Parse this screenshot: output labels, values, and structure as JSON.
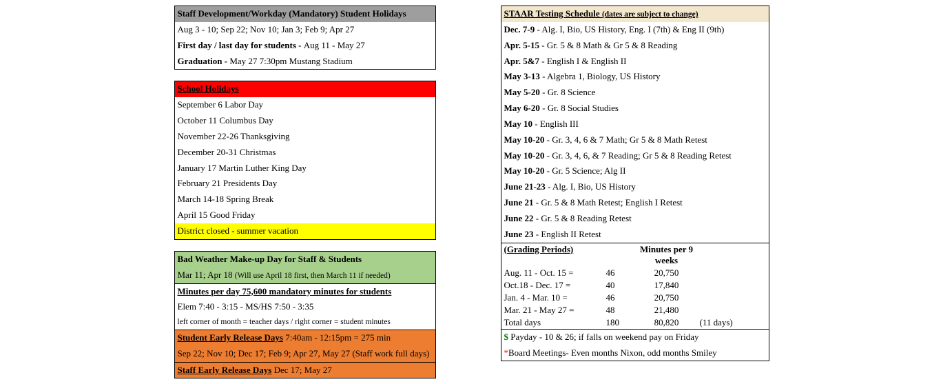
{
  "staffDev": {
    "header": "Staff Development/Workday (Mandatory) Student Holidays",
    "dates": "Aug 3 - 10; Sep 22; Nov 10; Jan 3; Feb 9; Apr 27",
    "firstLastLabel": "First day / last day for students - ",
    "firstLastValue": "Aug 11 - May 27",
    "gradLabel": "Graduation -  ",
    "gradValue": "May 27  7:30pm Mustang Stadium"
  },
  "holidays": {
    "header": "School Holidays",
    "items": [
      "September 6   Labor Day",
      "October 11   Columbus Day",
      "November 22-26 Thanksgiving",
      "December 20-31  Christmas",
      "January 17  Martin Luther King Day",
      "February 21  Presidents Day",
      "March 14-18  Spring Break",
      "April 15  Good Friday"
    ],
    "footer": "District closed - summer vacation"
  },
  "badWeather": {
    "line1Label": "Bad Weather Make-up Day for Staff & Students",
    "line2a": "Mar 11; Apr 18 ",
    "line2b": "(Will use April 18 first, then March 11 if needed)",
    "minsHeader": "Minutes per day  75,600 mandatory minutes for students",
    "minsSched": "Elem  7:40 - 3:15   -   MS/HS  7:50 - 3:35",
    "cornerNote": "left corner of month = teacher days / right corner = student minutes",
    "studEarlyLabel": "Student Early Release Days",
    "studEarlyTimes": " 7:40am - 12:15pm = 275 min",
    "studEarlyDates": "Sep 22; Nov 10; Dec 17; Feb 9; Apr 27, May 27 (Staff work full days)",
    "staffEarlyLabel": "Staff Early Release Days",
    "staffEarlyDates": " Dec 17; May 27"
  },
  "staar": {
    "header": "STAAR Testing Schedule ",
    "headerNote": "(dates are subject to change)",
    "rows": [
      {
        "b": "Dec. 7-9",
        "t": " - Alg. I, Bio, US History, Eng. I (7th) & Eng II (9th)"
      },
      {
        "b": "Apr. 5-15",
        "t": " - Gr. 5 & 8 Math & Gr 5 & 8 Reading"
      },
      {
        "b": "Apr. 5&7",
        "t": " - English I & English II"
      },
      {
        "b": "May 3-13",
        "t": "  - Algebra 1, Biology, US History"
      },
      {
        "b": "May  5-20",
        "t": " - Gr. 8 Science"
      },
      {
        "b": "May  6-20",
        "t": " - Gr. 8 Social Studies"
      },
      {
        "b": "May 10",
        "t": "  - English III"
      },
      {
        "b": "May 10-20",
        "t": " - Gr. 3, 4, 6 & 7 Math; Gr 5 & 8 Math Retest"
      },
      {
        "b": "May  10-20",
        "t": " - Gr. 3, 4, 6, & 7 Reading; Gr 5 & 8 Reading Retest"
      },
      {
        "b": "May 10-20",
        "t": " - Gr. 5 Science; Alg II"
      },
      {
        "b": "June 21-23",
        "t": " - Alg. I, Bio, US History"
      },
      {
        "b": "June 21",
        "t": " - Gr. 5 & 8 Math Retest; English I Retest"
      },
      {
        "b": "June 22",
        "t": " - Gr. 5 & 8 Reading Retest"
      },
      {
        "b": "June 23",
        "t": " - English II Retest"
      }
    ]
  },
  "grading": {
    "col1": "(Grading Periods)",
    "col2": "Minutes per 9 weeks",
    "rows": [
      {
        "p": "Aug. 11 - Oct. 15  = ",
        "d": "46",
        "m": "20,750",
        "n": ""
      },
      {
        "p": "Oct.18 - Dec. 17 = ",
        "d": "40",
        "m": "17,840",
        "n": ""
      },
      {
        "p": "Jan. 4 - Mar. 10  = ",
        "d": "46",
        "m": "20,750",
        "n": ""
      },
      {
        "p": "Mar. 21 - May 27 = ",
        "d": "48",
        "m": "21,480",
        "n": ""
      },
      {
        "p": "Total days",
        "d": "180",
        "m": "80,820",
        "n": "(11 days)"
      }
    ]
  },
  "footer": {
    "payday": " Payday - 10 & 26; if falls on weekend pay on Friday",
    "board": "Board Meetings- Even months Nixon, odd months Smiley"
  }
}
